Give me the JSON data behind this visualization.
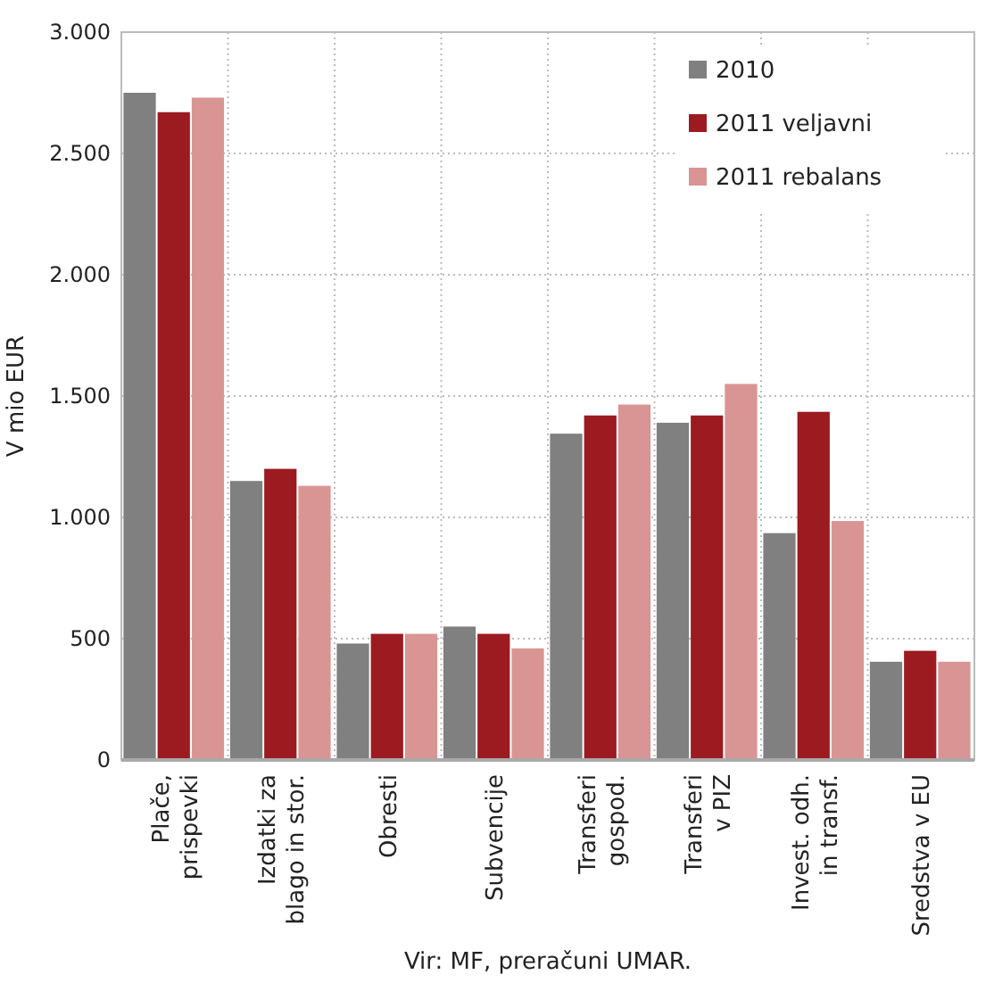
{
  "chart_data": {
    "type": "bar",
    "ylabel": "V mio EUR",
    "annotations": [
      "Vir: MF, preračuni UMAR."
    ],
    "categories": [
      "Plače,\nprispevki",
      "Izdatki za\nblago in stor.",
      "Obresti",
      "Subvencije",
      "Transferi\ngospod.",
      "Transferi\nv PIZ",
      "Invest. odh.\nin transf.",
      "Sredstva v EU"
    ],
    "series": [
      {
        "name": "2010",
        "color": "#808080",
        "values": [
          2750,
          1150,
          480,
          550,
          1345,
          1390,
          935,
          405
        ]
      },
      {
        "name": "2011 veljavni",
        "color": "#9b1b20",
        "values": [
          2670,
          1200,
          520,
          520,
          1420,
          1420,
          1435,
          450
        ]
      },
      {
        "name": "2011 rebalans",
        "color": "#d99594",
        "values": [
          2730,
          1130,
          520,
          460,
          1465,
          1550,
          985,
          405
        ]
      }
    ],
    "ylim": [
      0,
      3000
    ],
    "yticks": [
      0,
      {
        "value": 500,
        "label": "500"
      },
      {
        "value": 1000,
        "label": "1.000"
      },
      {
        "value": 1500,
        "label": "1.500"
      },
      {
        "value": 2000,
        "label": "2.000"
      },
      {
        "value": 2500,
        "label": "2.500"
      },
      {
        "value": 3000,
        "label": "3.000"
      }
    ],
    "grid": true,
    "legend": "top right"
  }
}
